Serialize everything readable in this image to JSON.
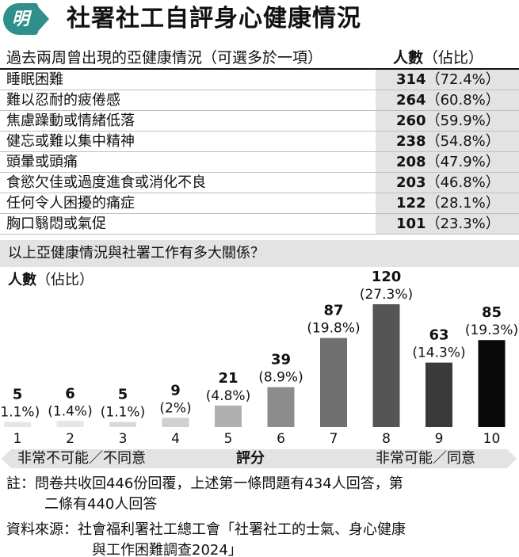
{
  "header": {
    "logo_char": "明",
    "title": "社署社工自評身心健康情況"
  },
  "table": {
    "col_item": "過去兩周曾出現的亞健康情況（可選多於一項）",
    "col_count_bold": "人數",
    "col_count_rest": "（佔比）",
    "rows": [
      {
        "item": "睡眠困難",
        "count": "314",
        "pct": "（72.4%）"
      },
      {
        "item": "難以忍耐的疲倦感",
        "count": "264",
        "pct": "（60.8%）"
      },
      {
        "item": "焦慮躁動或情緒低落",
        "count": "260",
        "pct": "（59.9%）"
      },
      {
        "item": "健忘或難以集中精神",
        "count": "238",
        "pct": "（54.8%）"
      },
      {
        "item": "頭暈或頭痛",
        "count": "208",
        "pct": "（47.9%）"
      },
      {
        "item": "食慾欠佳或過度進食或消化不良",
        "count": "203",
        "pct": "（46.8%）"
      },
      {
        "item": "任何令人困擾的痛症",
        "count": "122",
        "pct": "（28.1%）"
      },
      {
        "item": "胸口翳悶或氣促",
        "count": "101",
        "pct": "（23.3%）"
      }
    ]
  },
  "question2": "以上亞健康情況與社署工作有多大關係？",
  "chart_ylabel_bold": "人數",
  "chart_ylabel_rest": "（佔比）",
  "chart_data": {
    "type": "bar",
    "categories": [
      "1",
      "2",
      "3",
      "4",
      "5",
      "6",
      "7",
      "8",
      "9",
      "10"
    ],
    "values": [
      5,
      6,
      5,
      9,
      21,
      39,
      87,
      120,
      63,
      85
    ],
    "pct_labels": [
      "(1.1%)",
      "(1.4%)",
      "(1.1%)",
      "(2%)",
      "(4.8%)",
      "(8.9%)",
      "(19.8%)",
      "(27.3%)",
      "(14.3%)",
      "(19.3%)"
    ],
    "bar_colors": [
      "#e6e6e6",
      "#e6e6e6",
      "#d9d9d9",
      "#d0d0d0",
      "#b0b0b0",
      "#8c8c8c",
      "#6f6f6f",
      "#555555",
      "#3a3a3a",
      "#0a0a0a"
    ],
    "ylim": [
      0,
      120
    ],
    "grid": false,
    "legend": "none"
  },
  "scale": {
    "left": "非常不可能／不同意",
    "mid": "評分",
    "right": "非常可能／同意"
  },
  "notes": {
    "note_line1": "註：問卷共收回446份回覆，上述第一條問題有434人回答，第",
    "note_line2": "二條有440人回答",
    "source_line1": "資料來源：社會福利署社工總工會「社署社工的士氣、身心健康",
    "source_line2": "與工作困難調查2024」"
  }
}
